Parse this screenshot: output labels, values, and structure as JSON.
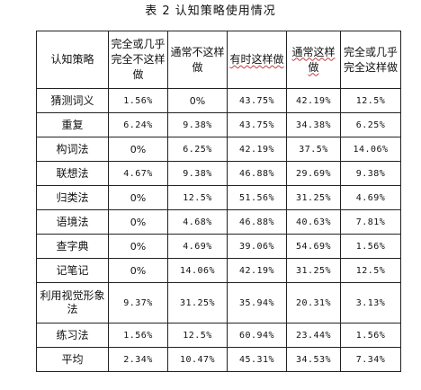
{
  "caption": "表 2  认知策略使用情况",
  "columns": [
    "认知策略",
    "完全或几乎完全不这样做",
    "通常不这样做",
    "有时这样做",
    "通常这样做",
    "完全或几乎完全这样做"
  ],
  "rows": [
    {
      "strategy": "猜测词义",
      "values": [
        "1.56%",
        "0%",
        "43.75%",
        "42.19%",
        "12.5%"
      ]
    },
    {
      "strategy": "重复",
      "values": [
        "6.24%",
        "9.38%",
        "43.75%",
        "34.38%",
        "6.25%"
      ]
    },
    {
      "strategy": "构词法",
      "values": [
        "0%",
        "6.25%",
        "42.19%",
        "37.5%",
        "14.06%"
      ]
    },
    {
      "strategy": "联想法",
      "values": [
        "4.67%",
        "9.38%",
        "46.88%",
        "29.69%",
        "9.38%"
      ]
    },
    {
      "strategy": "归类法",
      "values": [
        "0%",
        "12.5%",
        "51.56%",
        "31.25%",
        "4.69%"
      ]
    },
    {
      "strategy": "语境法",
      "values": [
        "0%",
        "4.68%",
        "46.88%",
        "40.63%",
        "7.81%"
      ]
    },
    {
      "strategy": "查字典",
      "values": [
        "0%",
        "4.69%",
        "39.06%",
        "54.69%",
        "1.56%"
      ]
    },
    {
      "strategy": "记笔记",
      "values": [
        "0%",
        "14.06%",
        "42.19%",
        "31.25%",
        "12.5%"
      ]
    },
    {
      "strategy": "利用视觉形象法",
      "values": [
        "9.37%",
        "31.25%",
        "35.94%",
        "20.31%",
        "3.13%"
      ]
    },
    {
      "strategy": "练习法",
      "values": [
        "1.56%",
        "12.5%",
        "60.94%",
        "23.44%",
        "1.56%"
      ]
    },
    {
      "strategy": "平均",
      "values": [
        "2.34%",
        "10.47%",
        "45.31%",
        "34.53%",
        "7.34%"
      ]
    }
  ]
}
